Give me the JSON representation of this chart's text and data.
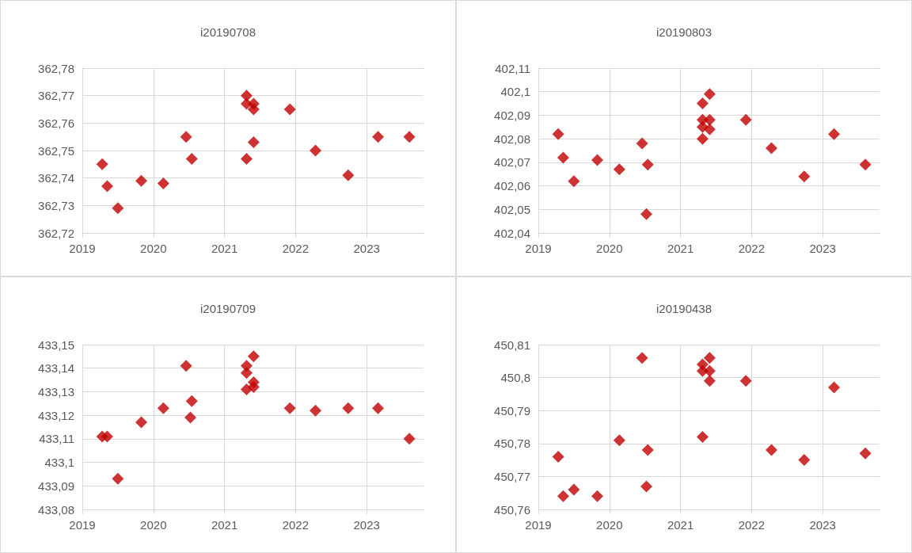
{
  "chart_data": [
    {
      "type": "scatter",
      "title": "i20190708",
      "marker": "diamond",
      "grid": true,
      "color": "#c00000",
      "x": [
        2019.28,
        2019.35,
        2019.5,
        2019.83,
        2020.14,
        2020.46,
        2020.54,
        2021.31,
        2021.31,
        2021.31,
        2021.41,
        2021.41,
        2021.41,
        2021.92,
        2022.28,
        2022.74,
        2023.16,
        2023.6
      ],
      "values": [
        362.745,
        362.737,
        362.729,
        362.739,
        362.738,
        362.755,
        362.747,
        362.77,
        362.767,
        362.747,
        362.767,
        362.765,
        362.753,
        362.765,
        362.75,
        362.741,
        362.755,
        362.755
      ],
      "xlim": [
        2019,
        2023.8
      ],
      "xticks": [
        2019,
        2020,
        2021,
        2022,
        2023
      ],
      "ylim": [
        362.72,
        362.78
      ],
      "yticks": [
        {
          "value": 362.72,
          "label": "362,72"
        },
        {
          "value": 362.73,
          "label": "362,73"
        },
        {
          "value": 362.74,
          "label": "362,74"
        },
        {
          "value": 362.75,
          "label": "362,75"
        },
        {
          "value": 362.76,
          "label": "362,76"
        },
        {
          "value": 362.77,
          "label": "362,77"
        },
        {
          "value": 362.78,
          "label": "362,78"
        }
      ]
    },
    {
      "type": "scatter",
      "title": "i20190803",
      "marker": "diamond",
      "grid": true,
      "color": "#c00000",
      "x": [
        2019.28,
        2019.35,
        2019.5,
        2019.83,
        2020.14,
        2020.46,
        2020.52,
        2020.54,
        2021.31,
        2021.31,
        2021.31,
        2021.31,
        2021.41,
        2021.41,
        2021.41,
        2021.92,
        2022.28,
        2022.74,
        2023.16,
        2023.6
      ],
      "values": [
        402.082,
        402.072,
        402.062,
        402.071,
        402.067,
        402.078,
        402.048,
        402.069,
        402.095,
        402.088,
        402.085,
        402.08,
        402.099,
        402.088,
        402.084,
        402.088,
        402.076,
        402.064,
        402.082,
        402.069
      ],
      "xlim": [
        2019,
        2023.8
      ],
      "xticks": [
        2019,
        2020,
        2021,
        2022,
        2023
      ],
      "ylim": [
        402.04,
        402.11
      ],
      "yticks": [
        {
          "value": 402.04,
          "label": "402,04"
        },
        {
          "value": 402.05,
          "label": "402,05"
        },
        {
          "value": 402.06,
          "label": "402,06"
        },
        {
          "value": 402.07,
          "label": "402,07"
        },
        {
          "value": 402.08,
          "label": "402,08"
        },
        {
          "value": 402.09,
          "label": "402,09"
        },
        {
          "value": 402.1,
          "label": "402,1"
        },
        {
          "value": 402.11,
          "label": "402,11"
        }
      ]
    },
    {
      "type": "scatter",
      "title": "i20190709",
      "marker": "diamond",
      "grid": true,
      "color": "#c00000",
      "x": [
        2019.28,
        2019.35,
        2019.5,
        2019.83,
        2020.14,
        2020.46,
        2020.52,
        2020.54,
        2021.31,
        2021.31,
        2021.31,
        2021.41,
        2021.41,
        2021.41,
        2021.92,
        2022.28,
        2022.74,
        2023.16,
        2023.6
      ],
      "values": [
        433.111,
        433.111,
        433.093,
        433.117,
        433.123,
        433.141,
        433.119,
        433.126,
        433.141,
        433.138,
        433.131,
        433.145,
        433.134,
        433.132,
        433.123,
        433.122,
        433.123,
        433.123,
        433.11
      ],
      "xlim": [
        2019,
        2023.8
      ],
      "xticks": [
        2019,
        2020,
        2021,
        2022,
        2023
      ],
      "ylim": [
        433.08,
        433.15
      ],
      "yticks": [
        {
          "value": 433.08,
          "label": "433,08"
        },
        {
          "value": 433.09,
          "label": "433,09"
        },
        {
          "value": 433.1,
          "label": "433,1"
        },
        {
          "value": 433.11,
          "label": "433,11"
        },
        {
          "value": 433.12,
          "label": "433,12"
        },
        {
          "value": 433.13,
          "label": "433,13"
        },
        {
          "value": 433.14,
          "label": "433,14"
        },
        {
          "value": 433.15,
          "label": "433,15"
        }
      ]
    },
    {
      "type": "scatter",
      "title": "i20190438",
      "marker": "diamond",
      "grid": true,
      "color": "#c00000",
      "x": [
        2019.28,
        2019.35,
        2019.5,
        2019.83,
        2020.14,
        2020.46,
        2020.52,
        2020.54,
        2021.31,
        2021.31,
        2021.31,
        2021.41,
        2021.41,
        2021.41,
        2021.92,
        2022.28,
        2022.74,
        2023.16,
        2023.6
      ],
      "values": [
        450.776,
        450.764,
        450.766,
        450.764,
        450.781,
        450.806,
        450.767,
        450.778,
        450.804,
        450.802,
        450.782,
        450.806,
        450.802,
        450.799,
        450.799,
        450.778,
        450.775,
        450.797,
        450.777
      ],
      "xlim": [
        2019,
        2023.8
      ],
      "xticks": [
        2019,
        2020,
        2021,
        2022,
        2023
      ],
      "ylim": [
        450.76,
        450.81
      ],
      "yticks": [
        {
          "value": 450.76,
          "label": "450,76"
        },
        {
          "value": 450.77,
          "label": "450,77"
        },
        {
          "value": 450.78,
          "label": "450,78"
        },
        {
          "value": 450.79,
          "label": "450,79"
        },
        {
          "value": 450.8,
          "label": "450,8"
        },
        {
          "value": 450.81,
          "label": "450,81"
        }
      ]
    }
  ]
}
